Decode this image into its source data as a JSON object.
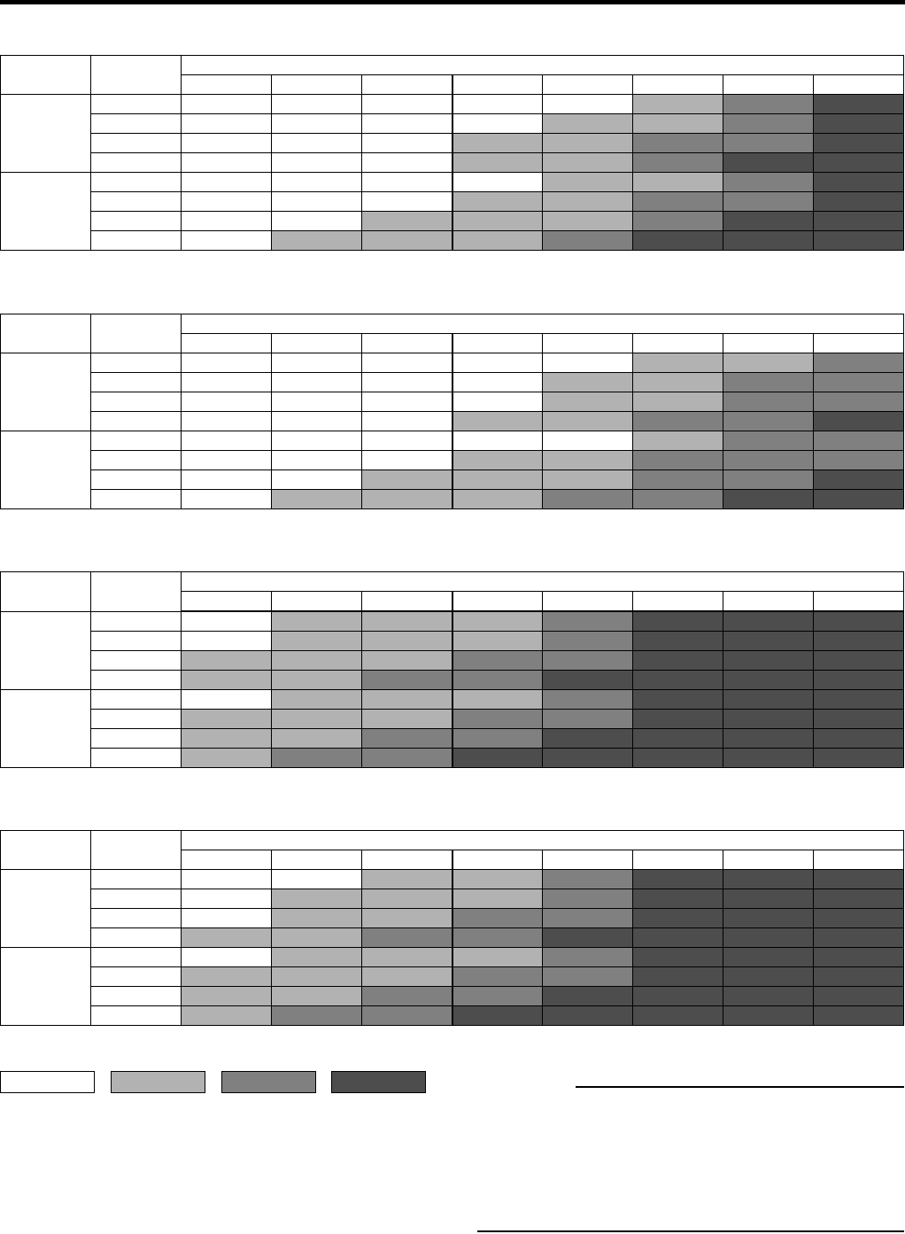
{
  "shade_colors": [
    "#ffffff",
    "#b2b2b2",
    "#808080",
    "#4d4d4d"
  ],
  "tables": [
    {
      "grid": [
        [
          0,
          0,
          0,
          0,
          0,
          1,
          2,
          3
        ],
        [
          0,
          0,
          0,
          0,
          1,
          1,
          2,
          3
        ],
        [
          0,
          0,
          0,
          1,
          1,
          2,
          2,
          3
        ],
        [
          0,
          0,
          0,
          1,
          1,
          2,
          3,
          3
        ],
        [
          0,
          0,
          0,
          0,
          1,
          1,
          2,
          3
        ],
        [
          0,
          0,
          0,
          1,
          1,
          2,
          2,
          3
        ],
        [
          0,
          0,
          1,
          1,
          1,
          2,
          3,
          3
        ],
        [
          0,
          1,
          1,
          1,
          2,
          3,
          3,
          3
        ]
      ]
    },
    {
      "grid": [
        [
          0,
          0,
          0,
          0,
          0,
          1,
          1,
          2
        ],
        [
          0,
          0,
          0,
          0,
          1,
          1,
          2,
          2
        ],
        [
          0,
          0,
          0,
          0,
          1,
          1,
          2,
          2
        ],
        [
          0,
          0,
          0,
          1,
          1,
          2,
          2,
          3
        ],
        [
          0,
          0,
          0,
          0,
          0,
          1,
          2,
          2
        ],
        [
          0,
          0,
          0,
          1,
          1,
          2,
          2,
          2
        ],
        [
          0,
          0,
          1,
          1,
          1,
          2,
          2,
          3
        ],
        [
          0,
          1,
          1,
          1,
          2,
          2,
          3,
          3
        ]
      ]
    },
    {
      "grid": [
        [
          0,
          1,
          1,
          1,
          2,
          3,
          3,
          3
        ],
        [
          0,
          1,
          1,
          1,
          2,
          3,
          3,
          3
        ],
        [
          1,
          1,
          1,
          2,
          2,
          3,
          3,
          3
        ],
        [
          1,
          1,
          2,
          2,
          3,
          3,
          3,
          3
        ],
        [
          0,
          1,
          1,
          1,
          2,
          3,
          3,
          3
        ],
        [
          1,
          1,
          1,
          2,
          2,
          3,
          3,
          3
        ],
        [
          1,
          1,
          2,
          2,
          3,
          3,
          3,
          3
        ],
        [
          1,
          2,
          2,
          3,
          3,
          3,
          3,
          3
        ]
      ],
      "thick_header": true
    },
    {
      "grid": [
        [
          0,
          0,
          1,
          1,
          2,
          3,
          3,
          3
        ],
        [
          0,
          1,
          1,
          1,
          2,
          3,
          3,
          3
        ],
        [
          0,
          1,
          1,
          2,
          2,
          3,
          3,
          3
        ],
        [
          1,
          1,
          2,
          2,
          3,
          3,
          3,
          3
        ],
        [
          0,
          1,
          1,
          1,
          2,
          3,
          3,
          3
        ],
        [
          1,
          1,
          1,
          2,
          2,
          3,
          3,
          3
        ],
        [
          1,
          1,
          2,
          2,
          3,
          3,
          3,
          3
        ],
        [
          1,
          2,
          2,
          3,
          3,
          3,
          3,
          3
        ]
      ]
    }
  ],
  "legend": [
    0,
    1,
    2,
    3
  ]
}
